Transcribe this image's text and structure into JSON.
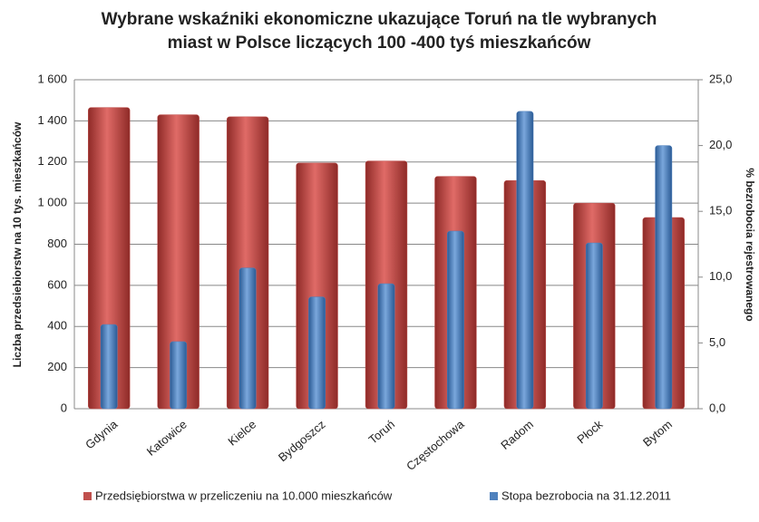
{
  "chart_data": {
    "type": "bar",
    "title": [
      "Wybrane wskaźniki ekonomiczne ukazujące Toruń na tle wybranych",
      "miast w Polsce liczących 100 -400 tyś mieszkańców"
    ],
    "y_label": "Liczba przedsiebiorstw na 10 tys. mieszkańców",
    "y2_label": "% bezrobocia rejestrowanego",
    "categories": [
      "Gdynia",
      "Katowice",
      "Kielce",
      "Bydgoszcz",
      "Toruń",
      "Częstochowa",
      "Radom",
      "Płock",
      "Bytom"
    ],
    "series": [
      {
        "name": "Przedsiębiorstwa w przeliczeniu na 10.000 mieszkańców",
        "color": "#c0504d",
        "values": [
          1465,
          1430,
          1420,
          1195,
          1205,
          1130,
          1110,
          1000,
          930
        ]
      },
      {
        "name": "Stopa bezrobocia na 31.12.2011",
        "color": "#4f81bd",
        "axis": "y2",
        "values": [
          6.4,
          5.1,
          10.7,
          8.5,
          9.5,
          13.5,
          22.6,
          12.6,
          20.0
        ]
      }
    ],
    "ylim": [
      0,
      1600
    ],
    "yticks": [
      0,
      200,
      400,
      600,
      800,
      {
        "value": 1000,
        "label": "1 000"
      },
      {
        "value": 1200,
        "label": "1 200"
      },
      {
        "value": 1400,
        "label": "1 400"
      },
      {
        "value": 1600,
        "label": "1 600"
      }
    ],
    "y2lim": [
      0,
      25
    ],
    "y2ticks": [
      {
        "value": 0,
        "label": "0,0"
      },
      {
        "value": 5,
        "label": "5,0"
      },
      {
        "value": 10,
        "label": "10,0"
      },
      {
        "value": 15,
        "label": "15,0"
      },
      {
        "value": 20,
        "label": "20,0"
      },
      {
        "value": 25,
        "label": "25,0"
      }
    ],
    "grid": true,
    "legend": "bottom"
  }
}
